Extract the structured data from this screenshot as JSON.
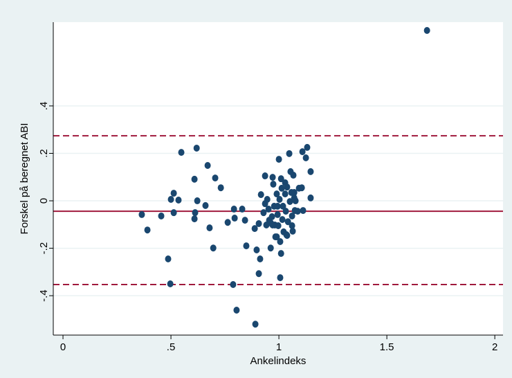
{
  "chart_data": {
    "type": "scatter",
    "x_label": "Ankelindeks",
    "y_label": "Forskel på beregnet ABI",
    "color": "#1a476f",
    "xlim": [
      -0.045,
      2.038
    ],
    "ylim": [
      -0.566,
      0.753
    ],
    "xticks": [
      0,
      {
        "value": 0.5,
        "label": ".5"
      },
      1,
      {
        "value": 1.5,
        "label": "1.5"
      },
      2
    ],
    "yticks": [
      {
        "value": -0.4,
        "label": "-.4"
      },
      {
        "value": -0.2,
        "label": "-.2"
      },
      0,
      {
        "value": 0.2,
        "label": ".2"
      },
      {
        "value": 0.4,
        "label": ".4"
      }
    ],
    "grid": true,
    "reference_lines": [
      {
        "value": 0.274,
        "style": "dashed",
        "color": "#a0193c"
      },
      {
        "value": -0.044,
        "style": "solid",
        "color": "#a0193c"
      },
      {
        "value": -0.353,
        "style": "dashed",
        "color": "#a0193c"
      }
    ],
    "x": [
      1.686,
      0.365,
      0.391,
      0.455,
      0.487,
      0.497,
      0.5,
      0.513,
      0.513,
      0.535,
      0.548,
      0.609,
      0.609,
      0.612,
      0.619,
      0.622,
      0.66,
      0.67,
      0.679,
      0.696,
      0.705,
      0.731,
      0.763,
      0.792,
      0.795,
      0.788,
      0.804,
      0.83,
      0.843,
      0.849,
      0.888,
      0.891,
      0.897,
      0.907,
      0.913,
      0.907,
      0.917,
      0.929,
      0.936,
      0.936,
      0.946,
      0.952,
      0.955,
      0.962,
      0.968,
      0.971,
      0.974,
      0.978,
      0.984,
      0.99,
      0.994,
      0.997,
      1.0,
      1.003,
      1.006,
      1.01,
      1.006,
      1.01,
      1.013,
      1.019,
      1.022,
      1.029,
      1.032,
      1.035,
      1.038,
      1.042,
      1.048,
      1.051,
      1.054,
      1.061,
      1.061,
      1.064,
      1.067,
      1.071,
      1.071,
      1.074,
      1.087,
      1.093,
      1.106,
      1.109,
      1.112,
      1.125,
      1.131,
      1.147,
      1.147,
      0.962,
      0.981,
      0.942,
      0.994,
      1.029,
      1.016,
      1.038,
      0.971,
      0.99,
      1.077,
      1.058
    ],
    "values": [
      0.718,
      -0.058,
      -0.123,
      -0.064,
      -0.245,
      -0.35,
      0.006,
      0.032,
      -0.05,
      0.003,
      0.204,
      0.091,
      -0.076,
      -0.05,
      0.222,
      0.0,
      -0.02,
      0.149,
      -0.114,
      -0.199,
      0.096,
      0.055,
      -0.091,
      -0.035,
      -0.073,
      -0.353,
      -0.461,
      -0.035,
      -0.082,
      -0.19,
      -0.117,
      -0.52,
      -0.207,
      -0.307,
      -0.245,
      -0.096,
      0.026,
      -0.05,
      0.105,
      -0.012,
      0.006,
      -0.035,
      -0.082,
      -0.199,
      -0.067,
      0.099,
      0.07,
      -0.023,
      -0.152,
      0.029,
      -0.058,
      -0.105,
      0.175,
      0.006,
      -0.172,
      -0.222,
      -0.324,
      0.093,
      0.053,
      -0.023,
      -0.131,
      0.076,
      -0.044,
      -0.143,
      0.058,
      -0.088,
      0.199,
      -0.003,
      0.123,
      -0.064,
      -0.105,
      -0.128,
      0.108,
      0.012,
      0.035,
      -0.041,
      -0.044,
      0.053,
      0.055,
      0.207,
      -0.041,
      0.181,
      0.225,
      0.123,
      0.012,
      -0.093,
      -0.102,
      -0.102,
      -0.023,
      0.029,
      -0.079,
      -0.146,
      -0.102,
      -0.152,
      0.0,
      0.035
    ]
  }
}
